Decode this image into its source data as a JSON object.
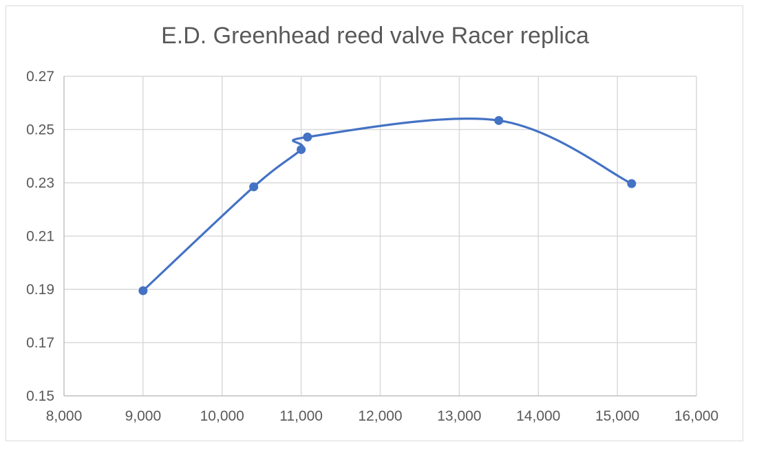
{
  "chart_data": {
    "type": "line",
    "title": "E.D. Greenhead  reed valve Racer replica",
    "xlabel": "",
    "ylabel": "",
    "xlim": [
      8000,
      16000
    ],
    "ylim": [
      0.15,
      0.27
    ],
    "x_ticks": [
      8000,
      9000,
      10000,
      11000,
      12000,
      13000,
      14000,
      15000,
      16000
    ],
    "x_tick_labels": [
      "8,000",
      "9,000",
      "10,000",
      "11,000",
      "12,000",
      "13,000",
      "14,000",
      "15,000",
      "16,000"
    ],
    "y_ticks": [
      0.15,
      0.17,
      0.19,
      0.21,
      0.23,
      0.25,
      0.27
    ],
    "y_tick_labels": [
      "0.15",
      "0.17",
      "0.19",
      "0.21",
      "0.23",
      "0.25",
      "0.27"
    ],
    "grid": true,
    "legend": "none",
    "smooth": true,
    "series": [
      {
        "color": "#4472c4",
        "points": [
          {
            "x": 9000,
            "y": 0.1895
          },
          {
            "x": 10400,
            "y": 0.2285
          },
          {
            "x": 11000,
            "y": 0.2425
          },
          {
            "x": 11080,
            "y": 0.2472
          },
          {
            "x": 13500,
            "y": 0.2534
          },
          {
            "x": 15180,
            "y": 0.2297
          }
        ]
      }
    ]
  }
}
